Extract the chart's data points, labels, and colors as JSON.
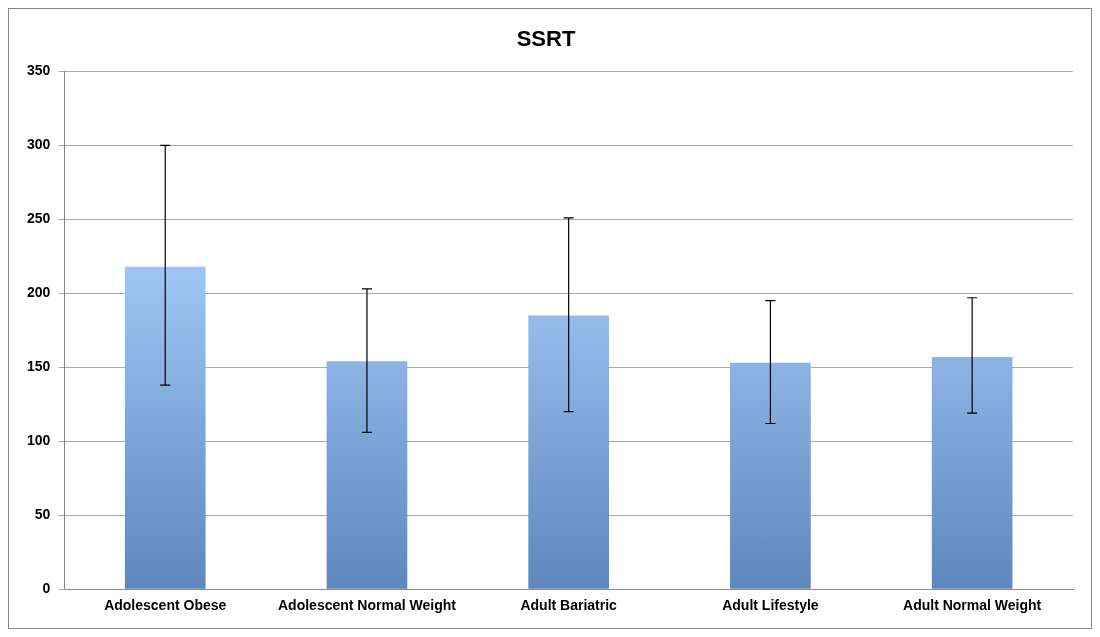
{
  "chart_data": {
    "type": "bar",
    "title": "SSRT",
    "categories": [
      "Adolescent Obese",
      "Adolescent Normal Weight",
      "Adult Bariatric",
      "Adult Lifestyle",
      "Adult Normal Weight"
    ],
    "values": [
      218,
      154,
      185,
      153,
      157
    ],
    "errors": [
      [
        138,
        300
      ],
      [
        106,
        203
      ],
      [
        120,
        251
      ],
      [
        112,
        195
      ],
      [
        119,
        197
      ]
    ],
    "color": "#74a9ec",
    "ylim": [
      0,
      350
    ],
    "yticks": [
      0,
      50,
      100,
      150,
      200,
      250,
      300,
      350
    ],
    "grid": "y",
    "legend": false
  }
}
